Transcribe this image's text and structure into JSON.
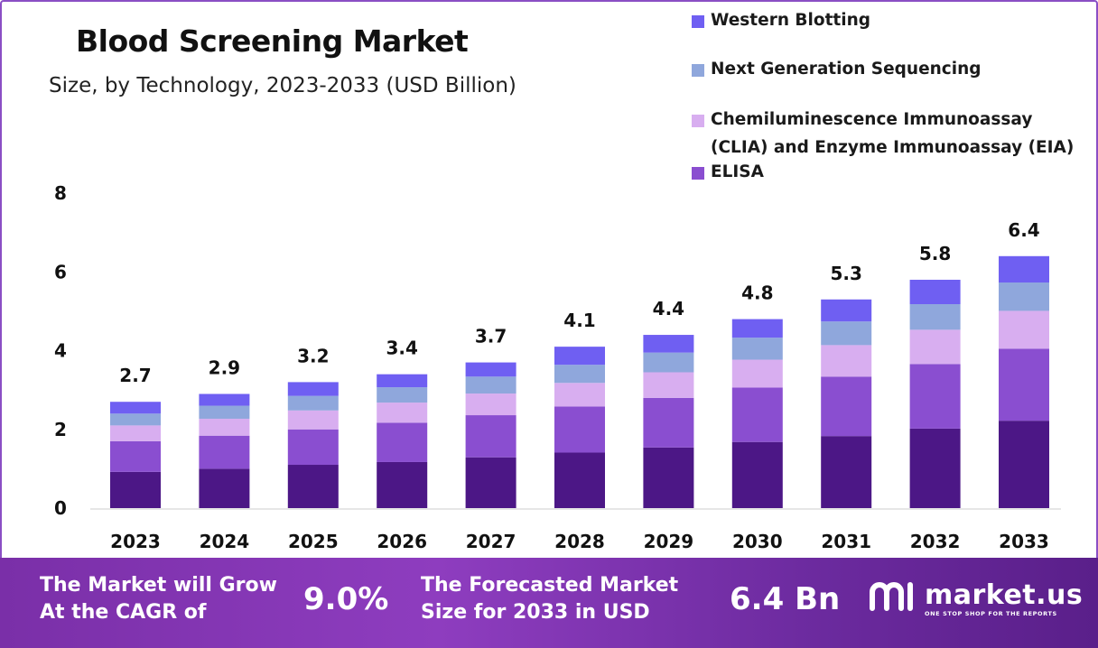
{
  "header": {
    "title": "Blood Screening Market",
    "subtitle": "Size, by Technology, 2023-2033 (USD Billion)"
  },
  "legend": {
    "items": [
      {
        "label": "Western Blotting",
        "color": "#6f5ff2"
      },
      {
        "label": "Next Generation Sequencing",
        "color": "#8fa7dc"
      },
      {
        "label": "Chemiluminescence Immunoassay (CLIA) and Enzyme Immunoassay (EIA)",
        "color": "#d8aef0"
      },
      {
        "label": "ELISA",
        "color": "#8a4ed0"
      }
    ]
  },
  "chart_data": {
    "type": "bar",
    "stacked": true,
    "categories": [
      "2023",
      "2024",
      "2025",
      "2026",
      "2027",
      "2028",
      "2029",
      "2030",
      "2031",
      "2032",
      "2033"
    ],
    "ylim": [
      0,
      8
    ],
    "yticks": [
      0,
      2,
      4,
      6,
      8
    ],
    "totals": [
      2.7,
      2.9,
      3.2,
      3.4,
      3.7,
      4.1,
      4.4,
      4.8,
      5.3,
      5.8,
      6.4
    ],
    "totals_labels": [
      "2.7",
      "2.9",
      "3.2",
      "3.4",
      "3.7",
      "4.1",
      "4.4",
      "4.8",
      "5.3",
      "5.8",
      "6.4"
    ],
    "series": [
      {
        "color": "#4c1786",
        "values": [
          0.92,
          1.0,
          1.1,
          1.17,
          1.29,
          1.41,
          1.54,
          1.68,
          1.83,
          2.02,
          2.22
        ]
      },
      {
        "name": "ELISA",
        "color": "#8a4ed0",
        "values": [
          0.78,
          0.84,
          0.9,
          1.0,
          1.07,
          1.17,
          1.26,
          1.38,
          1.51,
          1.64,
          1.83
        ]
      },
      {
        "name": "Chemiluminescence Immunoassay (CLIA) and Enzyme Immunoassay (EIA)",
        "color": "#d8aef0",
        "values": [
          0.4,
          0.43,
          0.48,
          0.51,
          0.55,
          0.6,
          0.65,
          0.71,
          0.8,
          0.87,
          0.96
        ]
      },
      {
        "name": "Next Generation Sequencing",
        "color": "#8fa7dc",
        "values": [
          0.3,
          0.33,
          0.37,
          0.39,
          0.43,
          0.46,
          0.5,
          0.56,
          0.6,
          0.65,
          0.72
        ]
      },
      {
        "name": "Western Blotting",
        "color": "#6f5ff2",
        "values": [
          0.3,
          0.3,
          0.35,
          0.33,
          0.36,
          0.46,
          0.45,
          0.47,
          0.56,
          0.62,
          0.67
        ]
      }
    ]
  },
  "banner": {
    "cagr_text_line1": "The Market will Grow",
    "cagr_text_line2": "At the CAGR of",
    "cagr_value": "9.0%",
    "forecast_text_line1": "The Forecasted Market",
    "forecast_text_line2": "Size for 2033 in USD",
    "forecast_value": "6.4 Bn",
    "brand_name": "market.us",
    "brand_tagline": "ONE STOP SHOP FOR THE REPORTS"
  }
}
